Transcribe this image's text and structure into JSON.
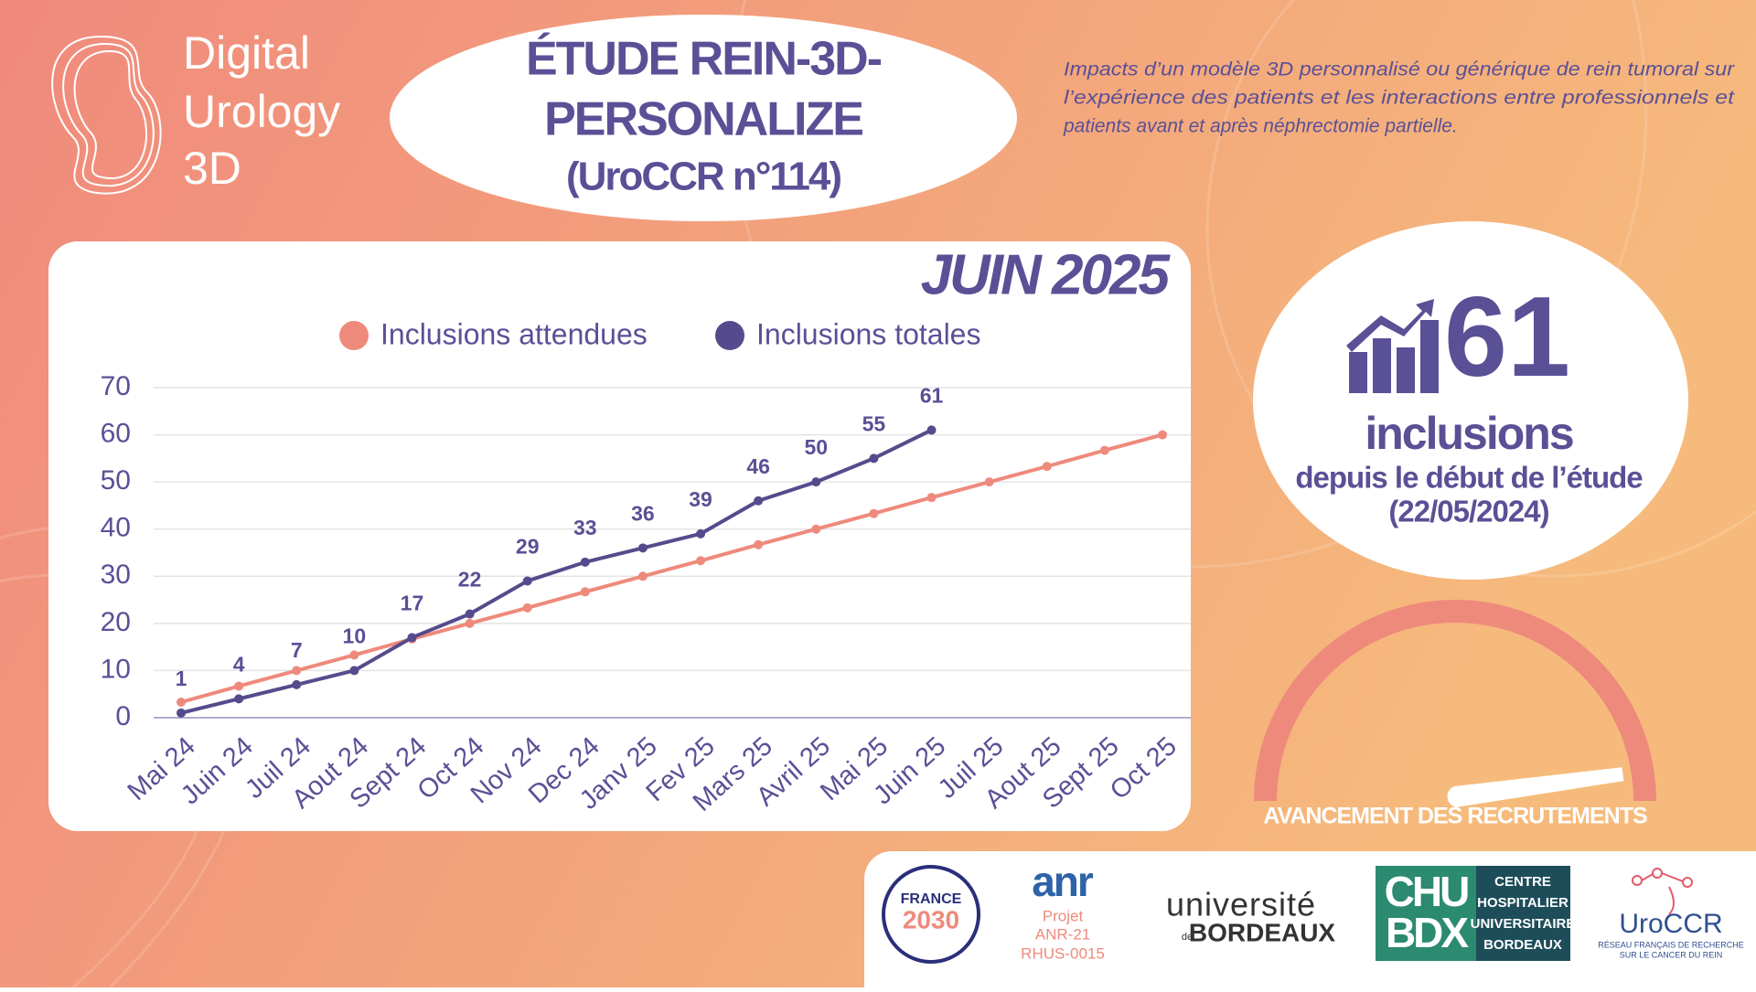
{
  "header": {
    "brand": [
      "Digital",
      "Urology",
      "3D"
    ],
    "title": [
      "ÉTUDE REIN-3D-",
      "PERSONALIZE",
      "(UroCCR n°114)"
    ],
    "description": [
      "Impacts d’un modèle 3D personnalisé ou générique de rein tumoral sur",
      "l’expérience des patients et les interactions entre professionnels et",
      "patients avant et après néphrectomie partielle."
    ]
  },
  "kpi": {
    "value": "61",
    "label": "inclusions",
    "sub": "depuis le début de l’étude",
    "date": "(22/05/2024)"
  },
  "gauge": {
    "label": "AVANCEMENT DES RECRUTEMENTS"
  },
  "logos": {
    "france": [
      "FRANCE",
      "2030"
    ],
    "anr": "anr",
    "anr_project": [
      "Projet",
      "ANR-21",
      "RHUS-0015"
    ],
    "ub": [
      "université",
      "de",
      "BORDEAUX"
    ],
    "chu": [
      "CHU",
      "BDX"
    ],
    "chu_name": [
      "CENTRE",
      "HOSPITALIER",
      "UNIVERSITAIRE",
      "BORDEAUX"
    ],
    "uroccr": "UroCCR",
    "uroccr_sub": [
      "RÉSEAU FRANÇAIS DE RECHERCHE",
      "SUR LE CANCER DU REIN"
    ]
  },
  "chart_data": {
    "type": "line",
    "title": "JUIN 2025",
    "categories": [
      "Mai 24",
      "Juin 24",
      "Juil 24",
      "Aout 24",
      "Sept 24",
      "Oct 24",
      "Nov 24",
      "Dec 24",
      "Janv 25",
      "Fev 25",
      "Mars 25",
      "Avril 25",
      "Mai 25",
      "Juin 25",
      "Juil 25",
      "Aout 25",
      "Sept 25",
      "Oct 25"
    ],
    "series": [
      {
        "name": "Inclusions attendues",
        "color": "#ee8a7c",
        "values": [
          3.3,
          6.7,
          10,
          13.3,
          16.7,
          20,
          23.3,
          26.7,
          30,
          33.3,
          36.7,
          40,
          43.3,
          46.7,
          50,
          53.3,
          56.7,
          60
        ]
      },
      {
        "name": "Inclusions totales",
        "color": "#554b8c",
        "values": [
          1,
          4,
          7,
          10,
          17,
          22,
          29,
          33,
          36,
          39,
          46,
          50,
          55,
          61,
          null,
          null,
          null,
          null
        ],
        "data_labels": true
      }
    ],
    "ylim": [
      0,
      70
    ],
    "yticks": [
      0,
      10,
      20,
      30,
      40,
      50,
      60,
      70
    ],
    "grid": true,
    "legend": "top"
  }
}
